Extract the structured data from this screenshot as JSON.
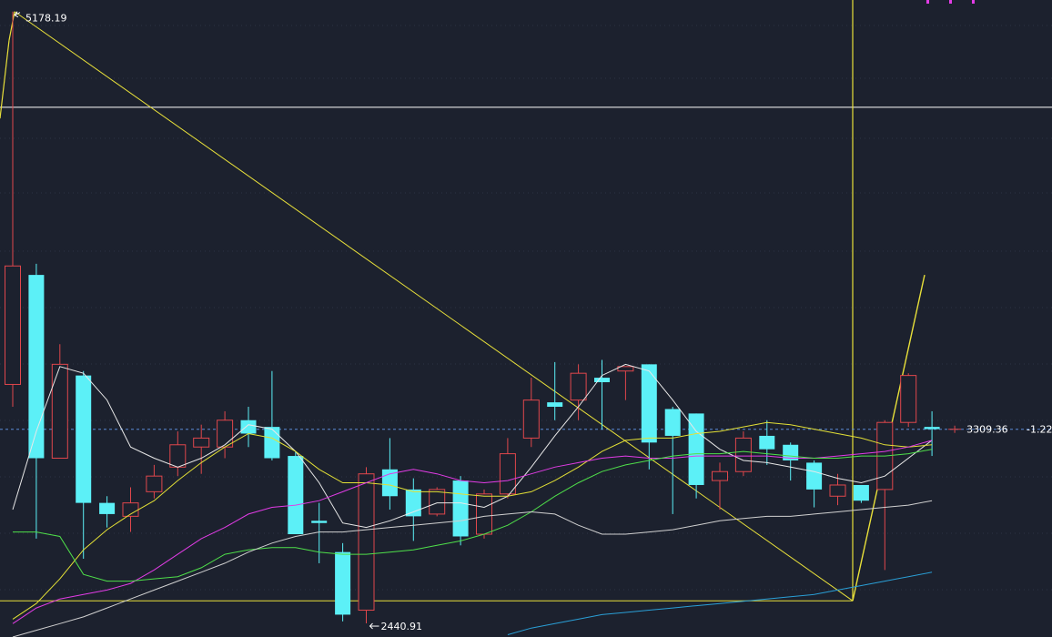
{
  "chart_data": {
    "type": "candlestick",
    "y_range": [
      2380,
      5230
    ],
    "reference_lines": {
      "horizontal_value": 4750,
      "lower_value": 2542,
      "last_value": 3309.36
    },
    "annotations": {
      "high_label": "5178.19",
      "low_label": "2440.91",
      "last_price_label": "3309.36",
      "last_change_label": "-1.22"
    },
    "colors": {
      "background": "#1c212e",
      "grid": "#2c3444",
      "up": "#e0474c",
      "down": "#5cf0f7",
      "ma_white": "#e8e8e8",
      "ma_yellow": "#e3e036",
      "ma_magenta": "#e23ce6",
      "ma_green": "#4fe04a",
      "ma_gray": "#d0d0d0",
      "ma_blue": "#2a9fd6",
      "drawing": "#e8e03a",
      "last_price": "#5b8bd6",
      "reference": "#ffffff",
      "text": "#ffffff"
    },
    "candles": [
      {
        "open": 3510,
        "close": 4040,
        "high": 5178.19,
        "low": 3410
      },
      {
        "open": 4000,
        "close": 3180,
        "high": 4050,
        "low": 2820
      },
      {
        "open": 3180,
        "close": 3600,
        "high": 3690,
        "low": 3180
      },
      {
        "open": 3550,
        "close": 2980,
        "high": 3570,
        "low": 2730
      },
      {
        "open": 2980,
        "close": 2930,
        "high": 3010,
        "low": 2870
      },
      {
        "open": 2920,
        "close": 2980,
        "high": 3050,
        "low": 2850
      },
      {
        "open": 3030,
        "close": 3100,
        "high": 3150,
        "low": 3000
      },
      {
        "open": 3140,
        "close": 3240,
        "high": 3300,
        "low": 3100
      },
      {
        "open": 3230,
        "close": 3270,
        "high": 3330,
        "low": 3110
      },
      {
        "open": 3230,
        "close": 3350,
        "high": 3390,
        "low": 3180
      },
      {
        "open": 3350,
        "close": 3290,
        "high": 3410,
        "low": 3230
      },
      {
        "open": 3320,
        "close": 3180,
        "high": 3570,
        "low": 3170
      },
      {
        "open": 3190,
        "close": 2840,
        "high": 3210,
        "low": 2860
      },
      {
        "open": 2900,
        "close": 2890,
        "high": 2980,
        "low": 2710
      },
      {
        "open": 2760,
        "close": 2480,
        "high": 2800,
        "low": 2450
      },
      {
        "open": 2500,
        "close": 3110,
        "high": 3140,
        "low": 2440.91
      },
      {
        "open": 3130,
        "close": 3010,
        "high": 3270,
        "low": 2950
      },
      {
        "open": 3040,
        "close": 2920,
        "high": 3090,
        "low": 2810
      },
      {
        "open": 2930,
        "close": 3040,
        "high": 3050,
        "low": 2920
      },
      {
        "open": 3080,
        "close": 2830,
        "high": 3100,
        "low": 2790
      },
      {
        "open": 2840,
        "close": 3020,
        "high": 3040,
        "low": 2820
      },
      {
        "open": 3020,
        "close": 3200,
        "high": 3270,
        "low": 3000
      },
      {
        "open": 3270,
        "close": 3440,
        "high": 3540,
        "low": 3230
      },
      {
        "open": 3430,
        "close": 3410,
        "high": 3610,
        "low": 3350
      },
      {
        "open": 3440,
        "close": 3560,
        "high": 3600,
        "low": 3350
      },
      {
        "open": 3540,
        "close": 3520,
        "high": 3620,
        "low": 3310
      },
      {
        "open": 3570,
        "close": 3590,
        "high": 3590,
        "low": 3440
      },
      {
        "open": 3600,
        "close": 3250,
        "high": 3600,
        "low": 3130
      },
      {
        "open": 3400,
        "close": 3280,
        "high": 3410,
        "low": 2930
      },
      {
        "open": 3380,
        "close": 3060,
        "high": 3380,
        "low": 3000
      },
      {
        "open": 3080,
        "close": 3120,
        "high": 3160,
        "low": 2950
      },
      {
        "open": 3120,
        "close": 3270,
        "high": 3300,
        "low": 3100
      },
      {
        "open": 3280,
        "close": 3220,
        "high": 3350,
        "low": 3150
      },
      {
        "open": 3240,
        "close": 3170,
        "high": 3250,
        "low": 3080
      },
      {
        "open": 3160,
        "close": 3040,
        "high": 3170,
        "low": 2960
      },
      {
        "open": 3010,
        "close": 3060,
        "high": 3110,
        "low": 2970
      },
      {
        "open": 3060,
        "close": 2990,
        "high": 3060,
        "low": 2980
      },
      {
        "open": 3040,
        "close": 3340,
        "high": 3350,
        "low": 2680
      },
      {
        "open": 3340,
        "close": 3550,
        "high": 3560,
        "low": 3320
      },
      {
        "open": 3320,
        "close": 3310,
        "high": 3390,
        "low": 3190
      }
    ],
    "moving_averages": [
      {
        "key": "ma_white",
        "values": [
          2950,
          3300,
          3590,
          3560,
          3440,
          3230,
          3180,
          3140,
          3180,
          3240,
          3330,
          3310,
          3210,
          3070,
          2890,
          2870,
          2900,
          2940,
          2980,
          2980,
          2960,
          3010,
          3140,
          3280,
          3410,
          3550,
          3600,
          3570,
          3440,
          3300,
          3220,
          3170,
          3160,
          3140,
          3120,
          3090,
          3070,
          3100,
          3180,
          3260
        ]
      },
      {
        "key": "ma_yellow",
        "values": [
          2460,
          2530,
          2640,
          2770,
          2860,
          2930,
          2990,
          3080,
          3160,
          3230,
          3290,
          3270,
          3210,
          3130,
          3070,
          3070,
          3060,
          3030,
          3030,
          3020,
          3010,
          3010,
          3030,
          3080,
          3140,
          3210,
          3260,
          3270,
          3270,
          3290,
          3300,
          3320,
          3340,
          3330,
          3310,
          3290,
          3270,
          3240,
          3230,
          3240
        ]
      },
      {
        "key": "ma_magenta",
        "values": [
          2440,
          2510,
          2550,
          2570,
          2590,
          2620,
          2680,
          2750,
          2820,
          2870,
          2930,
          2960,
          2970,
          2990,
          3030,
          3070,
          3110,
          3130,
          3110,
          3080,
          3070,
          3080,
          3110,
          3140,
          3160,
          3180,
          3190,
          3180,
          3180,
          3190,
          3190,
          3190,
          3190,
          3180,
          3180,
          3190,
          3200,
          3210,
          3230,
          3260
        ]
      },
      {
        "key": "ma_green",
        "values": [
          2850,
          2850,
          2830,
          2660,
          2630,
          2630,
          2640,
          2650,
          2690,
          2750,
          2770,
          2780,
          2780,
          2760,
          2750,
          2750,
          2760,
          2770,
          2790,
          2810,
          2840,
          2880,
          2940,
          3010,
          3070,
          3120,
          3150,
          3170,
          3190,
          3200,
          3200,
          3210,
          3200,
          3190,
          3180,
          3180,
          3190,
          3190,
          3200,
          3220
        ]
      },
      {
        "key": "ma_gray",
        "values": [
          2380,
          2410,
          2440,
          2470,
          2510,
          2550,
          2590,
          2630,
          2670,
          2710,
          2760,
          2800,
          2830,
          2850,
          2850,
          2860,
          2870,
          2880,
          2890,
          2900,
          2920,
          2930,
          2940,
          2930,
          2880,
          2840,
          2840,
          2850,
          2860,
          2880,
          2900,
          2910,
          2920,
          2920,
          2930,
          2940,
          2950,
          2960,
          2970,
          2990
        ]
      },
      {
        "key": "ma_blue",
        "values": [
          null,
          null,
          null,
          null,
          null,
          null,
          null,
          null,
          null,
          null,
          null,
          null,
          null,
          null,
          null,
          null,
          null,
          null,
          null,
          null,
          null,
          2390,
          2420,
          2440,
          2460,
          2480,
          2490,
          2500,
          2510,
          2520,
          2530,
          2540,
          2550,
          2560,
          2570,
          2590,
          2610,
          2630,
          2650,
          2670
        ]
      }
    ]
  }
}
